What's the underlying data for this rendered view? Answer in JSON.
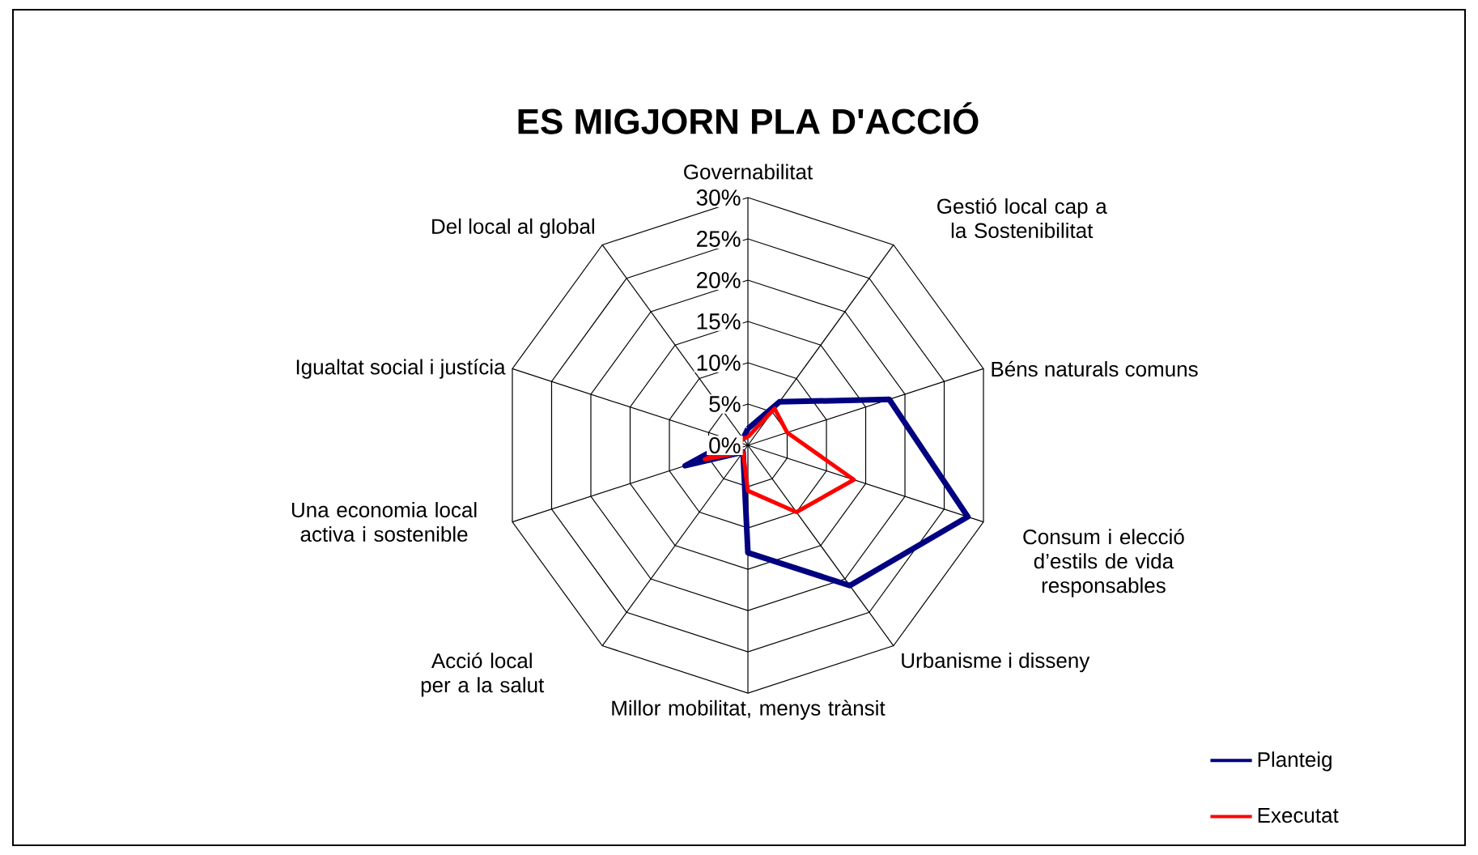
{
  "chart_data": {
    "type": "radar",
    "title": "ES MIGJORN PLA D'ACCIÓ",
    "categories": [
      "Governabilitat",
      "Gestió local cap a la Sostenibilitat",
      "Béns naturals comuns",
      "Consum i elecció d’estils de vida responsables",
      "Urbanisme i disseny",
      "Millor mobilitat, menys trànsit",
      "Acció local per a la salut",
      "Una economia local activa i sostenible",
      "Igualtat social i justícia",
      "Del local al global"
    ],
    "series": [
      {
        "name": "Planteig",
        "color": "#000080",
        "values": [
          2,
          6.5,
          18,
          28,
          21,
          13,
          1,
          8,
          2,
          1
        ]
      },
      {
        "name": "Executat",
        "color": "#ff0000",
        "values": [
          1,
          5.5,
          5,
          13.5,
          10,
          5.5,
          1,
          5.5,
          1,
          1
        ]
      }
    ],
    "ylim": [
      0,
      30
    ],
    "yticks": [
      {
        "value": 0,
        "label": "0%"
      },
      {
        "value": 5,
        "label": "5%"
      },
      {
        "value": 10,
        "label": "10%"
      },
      {
        "value": 15,
        "label": "15%"
      },
      {
        "value": 20,
        "label": "20%"
      },
      {
        "value": 25,
        "label": "25%"
      },
      {
        "value": 30,
        "label": "30%"
      }
    ],
    "grid": true,
    "legend": "bottom right"
  }
}
